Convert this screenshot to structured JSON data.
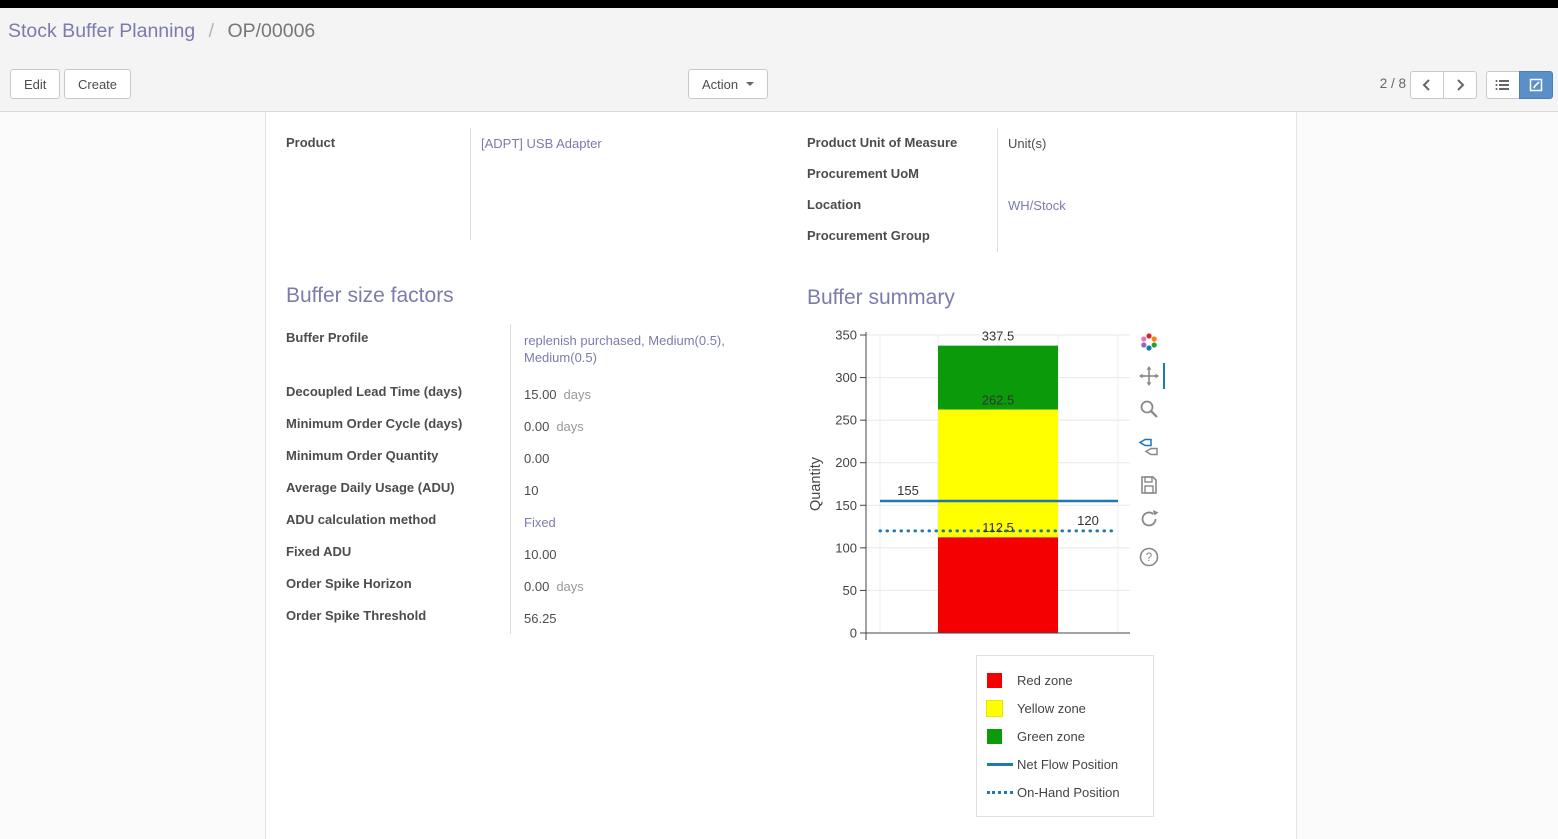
{
  "breadcrumb": {
    "parent": "Stock Buffer Planning",
    "separator": "/",
    "current": "OP/00006"
  },
  "toolbar": {
    "edit_label": "Edit",
    "create_label": "Create",
    "action_label": "Action",
    "pager_text": "2 / 8"
  },
  "icons": {
    "action_caret": "caret-down",
    "pager_prev": "chevron-left",
    "pager_next": "chevron-right",
    "view_list": "list-view",
    "view_form": "form-view",
    "modebar": [
      "plotly-logo",
      "pan",
      "zoom",
      "hover-compare",
      "save",
      "autoscale",
      "help"
    ]
  },
  "header_fields": {
    "product": {
      "label": "Product",
      "value": "[ADPT] USB Adapter"
    },
    "uom": {
      "label": "Product Unit of Measure",
      "value": "Unit(s)"
    },
    "procurement_uom": {
      "label": "Procurement UoM",
      "value": ""
    },
    "location": {
      "label": "Location",
      "value": "WH/Stock"
    },
    "procurement_group": {
      "label": "Procurement Group",
      "value": ""
    }
  },
  "buffer_factors": {
    "title": "Buffer size factors",
    "rows": [
      {
        "label": "Buffer Profile",
        "value": "replenish purchased, Medium(0.5), Medium(0.5)",
        "suffix": "",
        "link": true
      },
      {
        "label": "Decoupled Lead Time (days)",
        "value": "15.00",
        "suffix": "days"
      },
      {
        "label": "Minimum Order Cycle (days)",
        "value": "0.00",
        "suffix": "days"
      },
      {
        "label": "Minimum Order Quantity",
        "value": "0.00",
        "suffix": ""
      },
      {
        "label": "Average Daily Usage (ADU)",
        "value": "10",
        "suffix": ""
      },
      {
        "label": "ADU calculation method",
        "value": "Fixed",
        "suffix": "",
        "link": true
      },
      {
        "label": "Fixed ADU",
        "value": "10.00",
        "suffix": ""
      },
      {
        "label": "Order Spike Horizon",
        "value": "0.00",
        "suffix": "days"
      },
      {
        "label": "Order Spike Threshold",
        "value": "56.25",
        "suffix": ""
      }
    ]
  },
  "buffer_summary": {
    "title": "Buffer summary"
  },
  "chart_data": {
    "type": "bar",
    "title": "Buffer summary",
    "ylabel": "Quantity",
    "ylim": [
      0,
      350
    ],
    "yticks": [
      0,
      50,
      100,
      150,
      200,
      250,
      300,
      350
    ],
    "grid": true,
    "series": [
      {
        "name": "Red zone",
        "color": "#f40000",
        "from": 0,
        "to": 112.5
      },
      {
        "name": "Yellow zone",
        "color": "#ffff00",
        "from": 112.5,
        "to": 262.5
      },
      {
        "name": "Green zone",
        "color": "#0a9a0a",
        "from": 262.5,
        "to": 337.5
      }
    ],
    "bar_labels": [
      {
        "text": "337.5",
        "value": 337.5
      },
      {
        "text": "262.5",
        "value": 262.5
      },
      {
        "text": "112.5",
        "value": 112.5
      }
    ],
    "lines": [
      {
        "name": "Net Flow Position",
        "value": 155,
        "label": "155",
        "style": "solid",
        "color": "#1f77b4",
        "label_side": "left"
      },
      {
        "name": "On-Hand Position",
        "value": 120,
        "label": "120",
        "style": "dotted",
        "color": "#1f77b4",
        "label_side": "right"
      }
    ],
    "legend": [
      "Red zone",
      "Yellow zone",
      "Green zone",
      "Net Flow Position",
      "On-Hand Position"
    ],
    "legend_position": "bottom-right"
  }
}
